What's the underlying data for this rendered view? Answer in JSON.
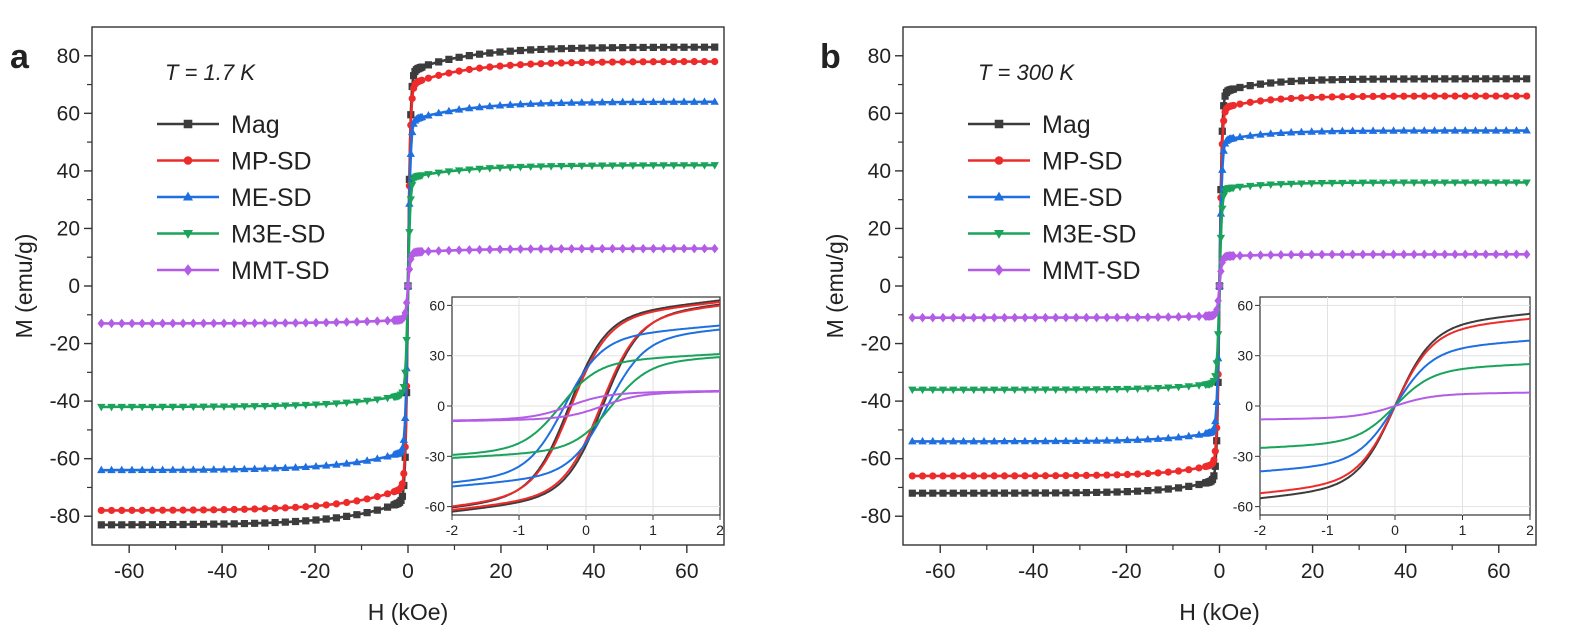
{
  "figure": {
    "colors": {
      "Mag": "#3c3c3c",
      "MP-SD": "#ee2b2b",
      "ME-SD": "#1e6fe0",
      "M3E-SD": "#1aa35a",
      "MMT-SD": "#b35ce6"
    }
  },
  "chart_data": [
    {
      "type": "line",
      "panel": "a",
      "annotation": "T = 1.7 K",
      "xlabel": "H (kOe)",
      "ylabel": "M (emu/g)",
      "xlim": [
        -68,
        68
      ],
      "ylim": [
        -90,
        90
      ],
      "xticks": [
        -60,
        -40,
        -20,
        0,
        20,
        40,
        60
      ],
      "yticks": [
        -80,
        -60,
        -40,
        -20,
        0,
        20,
        40,
        60,
        80
      ],
      "legend_position": "upper-left",
      "series": [
        {
          "name": "Mag",
          "ms": 83,
          "marker": "square"
        },
        {
          "name": "MP-SD",
          "ms": 78,
          "marker": "circle"
        },
        {
          "name": "ME-SD",
          "ms": 64,
          "marker": "triangle-up"
        },
        {
          "name": "M3E-SD",
          "ms": 42,
          "marker": "triangle-down"
        },
        {
          "name": "MMT-SD",
          "ms": 13,
          "marker": "diamond"
        }
      ],
      "inset": {
        "xlim": [
          -2,
          2
        ],
        "ylim": [
          -65,
          65
        ],
        "xticks": [
          -2,
          -1,
          0,
          1,
          2
        ],
        "yticks": [
          -60,
          -30,
          0,
          30,
          60
        ],
        "series": [
          {
            "name": "Mag",
            "value_at_2": 63,
            "coercivity": 0.25
          },
          {
            "name": "MP-SD",
            "value_at_2": 62,
            "coercivity": 0.22
          },
          {
            "name": "ME-SD",
            "value_at_2": 48,
            "coercivity": 0.32
          },
          {
            "name": "M3E-SD",
            "value_at_2": 31,
            "coercivity": 0.38
          },
          {
            "name": "MMT-SD",
            "value_at_2": 9,
            "coercivity": 0.25
          }
        ]
      }
    },
    {
      "type": "line",
      "panel": "b",
      "annotation": "T = 300 K",
      "xlabel": "H (kOe)",
      "ylabel": "M (emu/g)",
      "xlim": [
        -68,
        68
      ],
      "ylim": [
        -90,
        90
      ],
      "xticks": [
        -60,
        -40,
        -20,
        0,
        20,
        40,
        60
      ],
      "yticks": [
        -80,
        -60,
        -40,
        -20,
        0,
        20,
        40,
        60,
        80
      ],
      "legend_position": "upper-left",
      "series": [
        {
          "name": "Mag",
          "ms": 72,
          "marker": "square"
        },
        {
          "name": "MP-SD",
          "ms": 66,
          "marker": "circle"
        },
        {
          "name": "ME-SD",
          "ms": 54,
          "marker": "triangle-up"
        },
        {
          "name": "M3E-SD",
          "ms": 36,
          "marker": "triangle-down"
        },
        {
          "name": "MMT-SD",
          "ms": 11,
          "marker": "diamond"
        }
      ],
      "inset": {
        "xlim": [
          -2,
          2
        ],
        "ylim": [
          -65,
          65
        ],
        "xticks": [
          -2,
          -1,
          0,
          1,
          2
        ],
        "yticks": [
          -60,
          -30,
          0,
          30,
          60
        ],
        "series": [
          {
            "name": "Mag",
            "value_at_2": 55,
            "coercivity": 0
          },
          {
            "name": "MP-SD",
            "value_at_2": 52,
            "coercivity": 0
          },
          {
            "name": "ME-SD",
            "value_at_2": 39,
            "coercivity": 0
          },
          {
            "name": "M3E-SD",
            "value_at_2": 25,
            "coercivity": 0
          },
          {
            "name": "MMT-SD",
            "value_at_2": 8,
            "coercivity": 0
          }
        ]
      }
    }
  ]
}
